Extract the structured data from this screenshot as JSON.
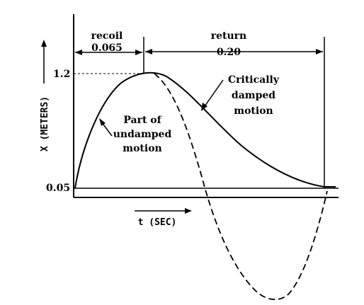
{
  "labels": {
    "recoil": "recoil",
    "recoil_value": "0.065",
    "return": "return",
    "return_value": "0.20",
    "tick_top": "1.2",
    "tick_bottom": "0.05",
    "y_axis": "X (METERS)",
    "x_axis": "t (SEC)",
    "critical_line1": "Critically",
    "critical_line2": "damped",
    "critical_line3": "motion",
    "undamped_line1": "Part of",
    "undamped_line2": "undamped",
    "undamped_line3": "motion"
  },
  "colors": {
    "ink": "#000000",
    "background": "#ffffff"
  }
}
